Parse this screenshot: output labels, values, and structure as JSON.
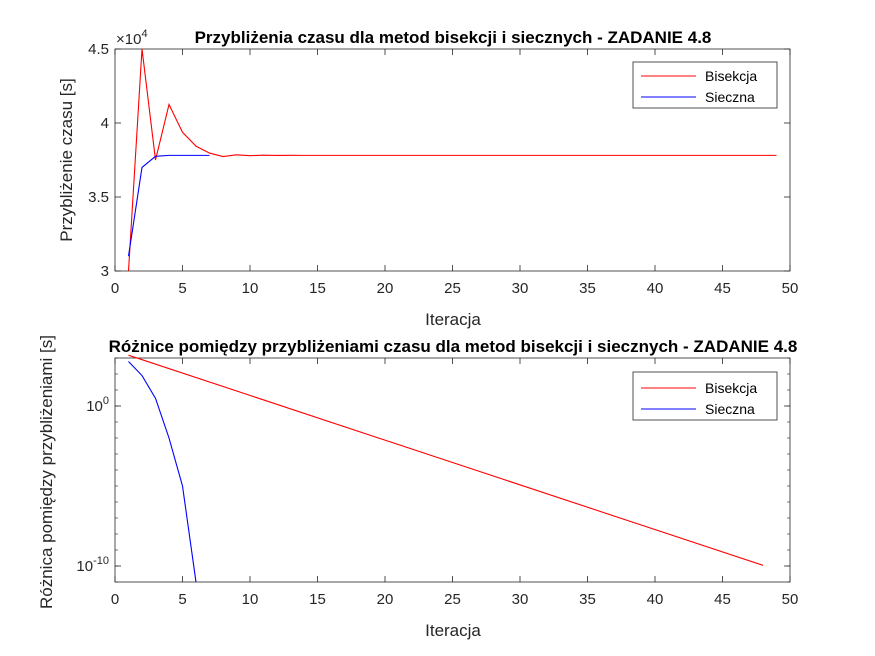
{
  "chart_data": [
    {
      "type": "line",
      "title": "Przybliżenia czasu dla metod bisekcji i siecznych - ZADANIE 4.8",
      "xlabel": "Iteracja",
      "ylabel": "Przybliżenie czasu [s]",
      "xlim": [
        0,
        50
      ],
      "ylim": [
        3,
        4.5
      ],
      "xticks": [
        "0",
        "5",
        "10",
        "15",
        "20",
        "25",
        "30",
        "35",
        "40",
        "45",
        "50"
      ],
      "yticks": [
        "3",
        "3.5",
        "4",
        "4.5"
      ],
      "exponent_label": {
        "base": "×10",
        "power": "4"
      },
      "legend_position": "top-right",
      "series": [
        {
          "name": "Bisekcja",
          "color": "#ff0000",
          "x": [
            1,
            2,
            3,
            4,
            5,
            6,
            7,
            8,
            9,
            10,
            11,
            12,
            13,
            14,
            15,
            16,
            17,
            18,
            19,
            20,
            21,
            22,
            23,
            24,
            25,
            26,
            27,
            28,
            29,
            30,
            31,
            32,
            33,
            34,
            35,
            36,
            37,
            38,
            39,
            40,
            41,
            42,
            43,
            44,
            45,
            46,
            47,
            48,
            49
          ],
          "y": [
            3.0,
            4.5,
            3.75,
            4.125,
            3.9375,
            3.84375,
            3.796875,
            3.7734,
            3.7852,
            3.7793,
            3.7822,
            3.7808,
            3.7815,
            3.7812,
            3.7813,
            3.7813,
            3.7813,
            3.7813,
            3.7813,
            3.7813,
            3.7813,
            3.7813,
            3.7813,
            3.7813,
            3.7813,
            3.7813,
            3.7813,
            3.7813,
            3.7813,
            3.7813,
            3.7813,
            3.7813,
            3.7813,
            3.7813,
            3.7813,
            3.7813,
            3.7813,
            3.7813,
            3.7813,
            3.7813,
            3.7813,
            3.7813,
            3.7813,
            3.7813,
            3.7813,
            3.7813,
            3.7813,
            3.7813,
            3.7813
          ]
        },
        {
          "name": "Sieczna",
          "color": "#0000ff",
          "x": [
            1,
            2,
            3,
            4,
            5,
            6,
            7
          ],
          "y": [
            3.1,
            3.7,
            3.775,
            3.7812,
            3.7813,
            3.7813,
            3.7813
          ]
        }
      ]
    },
    {
      "type": "line",
      "title": "Różnice pomiędzy przybliżeniami czasu dla metod bisekcji i siecznych - ZADANIE 4.8",
      "xlabel": "Iteracja",
      "ylabel": "Różnica pomiędzy przybliżeniami [s]",
      "xlim": [
        0,
        50
      ],
      "ylim": [
        1e-11,
        1000
      ],
      "yscale": "log",
      "xticks": [
        "0",
        "5",
        "10",
        "15",
        "20",
        "25",
        "30",
        "35",
        "40",
        "45",
        "50"
      ],
      "yticks": [
        {
          "base": "10",
          "power": "0",
          "value": 1
        },
        {
          "base": "10",
          "power": "-10",
          "value": 1e-10
        }
      ],
      "legend_position": "top-right",
      "series": [
        {
          "name": "Bisekcja",
          "color": "#ff0000",
          "x": [
            1,
            48
          ],
          "y": [
            1500,
            1.1e-10
          ]
        },
        {
          "name": "Sieczna",
          "color": "#0000ff",
          "x": [
            1,
            2,
            3,
            4,
            5,
            6
          ],
          "y": [
            600,
            80,
            3,
            0.01,
            1e-05,
            1e-11
          ]
        }
      ]
    }
  ]
}
